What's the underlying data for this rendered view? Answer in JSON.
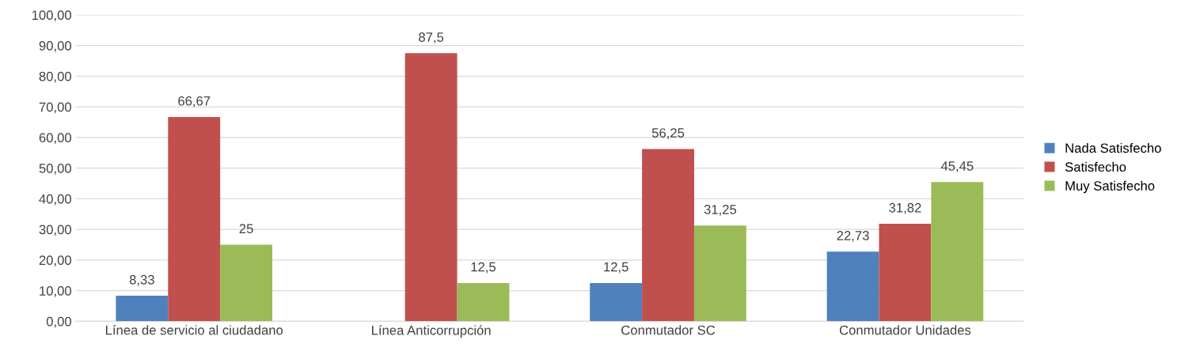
{
  "chart_data": {
    "type": "bar",
    "categories": [
      "Línea de servicio al ciudadano",
      "Línea Anticorrupción",
      "Conmutador SC",
      "Conmutador Unidades"
    ],
    "series": [
      {
        "name": "Nada Satisfecho",
        "color": "#4f81bd",
        "values": [
          8.33,
          null,
          12.5,
          22.73
        ],
        "value_labels": [
          "8,33",
          null,
          "12,5",
          "22,73"
        ]
      },
      {
        "name": "Satisfecho",
        "color": "#c0504d",
        "values": [
          66.67,
          87.5,
          56.25,
          31.82
        ],
        "value_labels": [
          "66,67",
          "87,5",
          "56,25",
          "31,82"
        ]
      },
      {
        "name": "Muy Satisfecho",
        "color": "#9bbb59",
        "values": [
          25,
          12.5,
          31.25,
          45.45
        ],
        "value_labels": [
          "25",
          "12,5",
          "31,25",
          "45,45"
        ]
      }
    ],
    "ylim": [
      0,
      100
    ],
    "yticks": [
      {
        "value": 0,
        "label": "0,00"
      },
      {
        "value": 10,
        "label": "10,00"
      },
      {
        "value": 20,
        "label": "20,00"
      },
      {
        "value": 30,
        "label": "30,00"
      },
      {
        "value": 40,
        "label": "40,00"
      },
      {
        "value": 50,
        "label": "50,00"
      },
      {
        "value": 60,
        "label": "60,00"
      },
      {
        "value": 70,
        "label": "70,00"
      },
      {
        "value": 80,
        "label": "80,00"
      },
      {
        "value": 90,
        "label": "90,00"
      },
      {
        "value": 100,
        "label": "100,00"
      }
    ],
    "grid": "y",
    "legend": "right"
  }
}
